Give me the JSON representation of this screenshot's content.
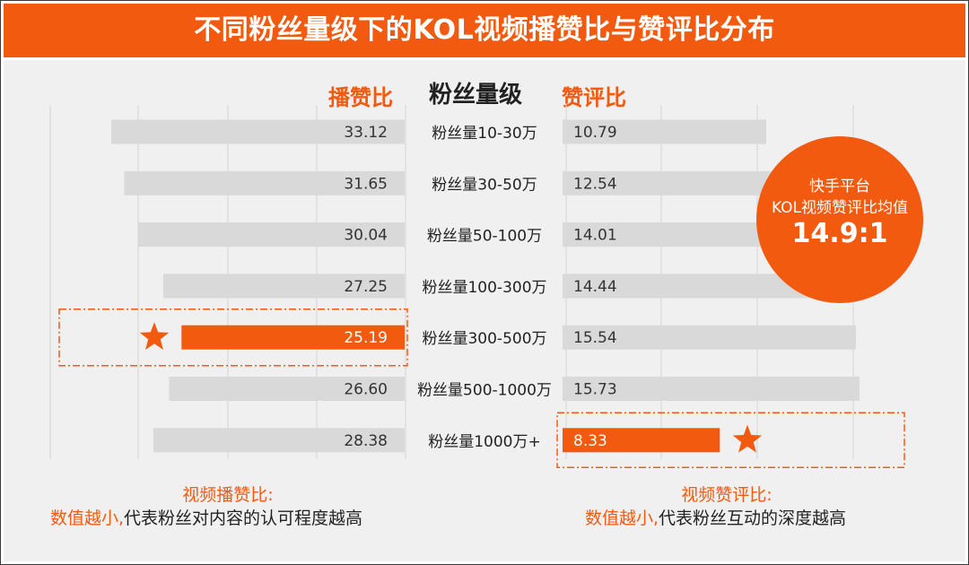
{
  "title": "不同粉丝量级下的KOL视频播赞比与赞评比分布",
  "headers": {
    "left": "播赞比",
    "center": "粉丝量级",
    "right": "赞评比"
  },
  "callout": {
    "line1": "快手平台",
    "line2": "KOL视频赞评比均值",
    "value": "14.9:1"
  },
  "notes": {
    "left_title": "视频播赞比:",
    "left_highlight": "数值越小,",
    "left_rest": "代表粉丝对内容的认可程度越高",
    "right_title": "视频赞评比:",
    "right_highlight": "数值越小,",
    "right_rest": "代表粉丝互动的深度越高"
  },
  "colors": {
    "accent": "#f25a10",
    "bar": "#d9d9d9",
    "background": "#f0f0f0"
  },
  "chart_data": {
    "type": "bar",
    "orientation": "horizontal",
    "categories": [
      "粉丝量10-30万",
      "粉丝量30-50万",
      "粉丝量50-100万",
      "粉丝量100-300万",
      "粉丝量300-500万",
      "粉丝量500-1000万",
      "粉丝量1000万+"
    ],
    "series": [
      {
        "name": "播赞比",
        "values_display": [
          "33.12",
          "31.65",
          "30.04",
          "27.25",
          "25.19",
          "26.60",
          "28.38"
        ],
        "values": [
          33.12,
          31.65,
          30.04,
          27.25,
          25.19,
          26.6,
          28.38
        ],
        "highlight_index": 4
      },
      {
        "name": "赞评比",
        "values_display": [
          "10.79",
          "12.54",
          "14.01",
          "14.44",
          "15.54",
          "15.73",
          "8.33"
        ],
        "values": [
          10.79,
          12.54,
          14.01,
          14.44,
          15.54,
          15.73,
          8.33
        ],
        "highlight_index": 6
      }
    ],
    "xlabel": "",
    "ylabel": "",
    "grid": true,
    "markers": "star on highlighted bar"
  }
}
